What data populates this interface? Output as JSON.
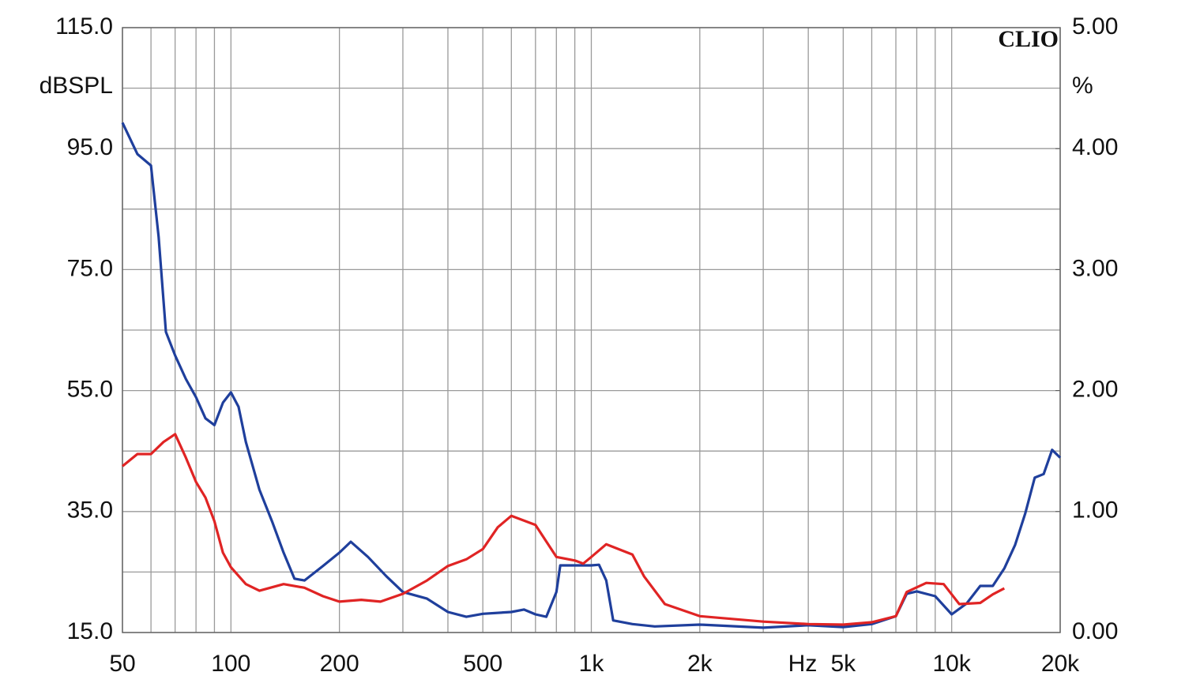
{
  "chart_data": {
    "type": "line",
    "annotation": "CLIO",
    "ylabel": "dBSPL",
    "y2label": "%",
    "xlabel": "Hz",
    "xscale": "log",
    "xlim": [
      50,
      20000
    ],
    "xticks": [
      {
        "value": 50,
        "label": "50"
      },
      {
        "value": 100,
        "label": "100"
      },
      {
        "value": 200,
        "label": "200"
      },
      {
        "value": 500,
        "label": "500"
      },
      {
        "value": 1000,
        "label": "1k"
      },
      {
        "value": 2000,
        "label": "2k"
      },
      {
        "value": 5000,
        "label": "5k"
      },
      {
        "value": 10000,
        "label": "10k"
      },
      {
        "value": 20000,
        "label": "20k"
      }
    ],
    "x_minor_ticks": [
      60,
      70,
      80,
      90,
      300,
      400,
      600,
      700,
      800,
      900,
      3000,
      4000,
      6000,
      7000,
      8000,
      9000
    ],
    "ylim": [
      15,
      115
    ],
    "yticks": [
      {
        "value": 15,
        "label": "15.0"
      },
      {
        "value": 35,
        "label": "35.0"
      },
      {
        "value": 55,
        "label": "55.0"
      },
      {
        "value": 75,
        "label": "75.0"
      },
      {
        "value": 95,
        "label": "95.0"
      },
      {
        "value": 115,
        "label": "115.0"
      }
    ],
    "y_minor_ticks": [
      25,
      45,
      65,
      85,
      105
    ],
    "y2lim": [
      0,
      5
    ],
    "y2ticks": [
      {
        "value": 0,
        "label": "0.00"
      },
      {
        "value": 1,
        "label": "1.00"
      },
      {
        "value": 2,
        "label": "2.00"
      },
      {
        "value": 3,
        "label": "3.00"
      },
      {
        "value": 4,
        "label": "4.00"
      },
      {
        "value": 5,
        "label": "5.00"
      }
    ],
    "grid": true,
    "series": [
      {
        "color": "#1f3f9c",
        "x": [
          50,
          55,
          60,
          63,
          66,
          70,
          75,
          80,
          85,
          90,
          95,
          100,
          105,
          110,
          120,
          130,
          140,
          150,
          160,
          180,
          200,
          215,
          240,
          270,
          300,
          350,
          400,
          450,
          500,
          600,
          650,
          700,
          750,
          800,
          820,
          900,
          1000,
          1050,
          1100,
          1150,
          1300,
          1500,
          2000,
          3000,
          4000,
          5000,
          6000,
          7000,
          7500,
          8000,
          9000,
          10000,
          11000,
          12000,
          13000,
          14000,
          15000,
          16000,
          17000,
          18000,
          19000,
          20000
        ],
        "values": [
          99.3,
          94.1,
          92.2,
          80.4,
          64.7,
          60.8,
          56.9,
          53.9,
          50.4,
          49.3,
          53,
          54.7,
          52.3,
          46.5,
          38.6,
          33.4,
          28.2,
          23.9,
          23.6,
          26,
          28.2,
          30,
          27.5,
          24.3,
          21.7,
          20.6,
          18.4,
          17.6,
          18.1,
          18.4,
          18.8,
          18,
          17.6,
          21.7,
          26.1,
          26.1,
          26.1,
          26.2,
          23.6,
          17,
          16.4,
          16,
          16.3,
          15.8,
          16.2,
          15.9,
          16.4,
          17.7,
          21.4,
          21.8,
          21,
          18,
          19.8,
          22.7,
          22.7,
          25.6,
          29.5,
          34.7,
          40.6,
          41.2,
          45.2,
          43.9
        ]
      },
      {
        "color": "#e02424",
        "x": [
          50,
          55,
          60,
          65,
          70,
          75,
          80,
          85,
          90,
          95,
          100,
          110,
          120,
          140,
          160,
          180,
          200,
          230,
          260,
          300,
          350,
          400,
          450,
          500,
          550,
          600,
          700,
          800,
          900,
          950,
          1000,
          1100,
          1300,
          1400,
          1600,
          2000,
          3000,
          4000,
          5000,
          6000,
          7000,
          7500,
          8500,
          9500,
          10500,
          12000,
          13000,
          14000
        ],
        "values": [
          42.5,
          44.5,
          44.5,
          46.5,
          47.8,
          43.9,
          39.9,
          37.3,
          33.4,
          28.2,
          25.8,
          23,
          21.9,
          23,
          22.4,
          21,
          20.1,
          20.4,
          20.1,
          21.4,
          23.6,
          26,
          27.1,
          28.8,
          32.4,
          34.3,
          32.8,
          27.5,
          26.9,
          26.4,
          27.5,
          29.6,
          27.9,
          24.3,
          19.7,
          17.7,
          16.8,
          16.4,
          16.3,
          16.7,
          17.7,
          21.7,
          23.2,
          23,
          19.7,
          19.9,
          21.3,
          22.3
        ]
      }
    ]
  }
}
